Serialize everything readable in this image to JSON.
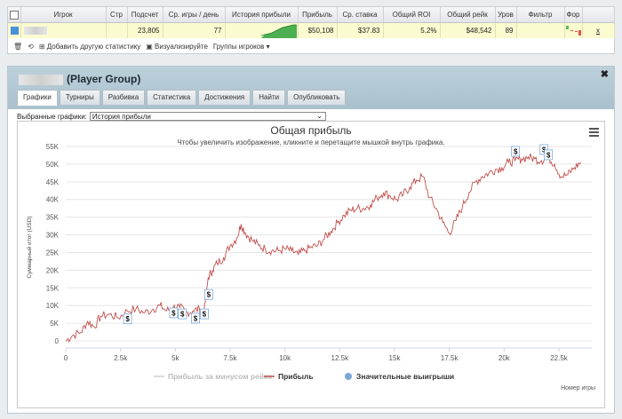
{
  "stats": {
    "columns": [
      "",
      "Игрок",
      "Стр",
      "Подсчет",
      "Ср. игры / день",
      "История прибыли",
      "Прибыль",
      "Ср. ставка",
      "Общий ROI",
      "Общий рейк",
      "Уров",
      "Фильтр",
      "Фор",
      ""
    ],
    "row": {
      "count": "23,805",
      "games_per_day": "77",
      "profit": "$50,108",
      "avg_stake": "$37.83",
      "roi": "5.2%",
      "rake": "$48,542",
      "level": "89",
      "x": "x"
    },
    "toolbar": {
      "add_stat": "Добавить другую статистику",
      "visualize": "Визуализируйте",
      "groups": "Группы игроков ▾"
    }
  },
  "panel": {
    "title": "(Player Group)",
    "tabs": [
      "Графики",
      "Турниры",
      "Разбивка",
      "Статистика",
      "Достижения",
      "Найти",
      "Опубликовать"
    ],
    "selector_label": "Выбранные графики:",
    "selector_value": "История прибыли"
  },
  "chart_data": {
    "type": "line",
    "title": "Общая прибыль",
    "subtitle": "Чтобы увеличить изображение, кликните и перетащите мышкой внутрь графика.",
    "ylabel": "Суммарный итог (USD)",
    "xlabel": "Номер игры",
    "xlim": [
      0,
      24000
    ],
    "ylim": [
      -2000,
      55000
    ],
    "x_ticks": [
      "0",
      "2.5k",
      "5k",
      "7.5k",
      "10k",
      "12.5k",
      "15k",
      "17.5k",
      "20k",
      "22.5k"
    ],
    "x_tick_values": [
      0,
      2500,
      5000,
      7500,
      10000,
      12500,
      15000,
      17500,
      20000,
      22500
    ],
    "y_ticks": [
      "0",
      "5K",
      "10K",
      "15K",
      "20K",
      "25K",
      "30K",
      "35K",
      "40K",
      "45K",
      "50K",
      "55K"
    ],
    "y_tick_values": [
      0,
      5000,
      10000,
      15000,
      20000,
      25000,
      30000,
      35000,
      40000,
      45000,
      50000,
      55000
    ],
    "legend": [
      "Прибыль за минусом рейка",
      "Прибыль",
      "Значительные выигрыши"
    ],
    "legend_colors": [
      "#cfcfcf",
      "#c0504d",
      "#7aa7d6"
    ],
    "series": [
      {
        "name": "Прибыль",
        "x": [
          0,
          300,
          700,
          1000,
          1300,
          1600,
          2000,
          2400,
          2800,
          3200,
          3600,
          4000,
          4300,
          4600,
          4900,
          5200,
          5500,
          5800,
          6100,
          6300,
          6500,
          6700,
          6900,
          7200,
          7500,
          7800,
          8000,
          8200,
          8500,
          8800,
          9100,
          9400,
          9700,
          10000,
          10300,
          10600,
          10900,
          11200,
          11500,
          11800,
          12100,
          12400,
          12700,
          13000,
          13300,
          13600,
          13900,
          14200,
          14500,
          14800,
          15100,
          15400,
          15700,
          16000,
          16300,
          16600,
          16900,
          17200,
          17500,
          17800,
          18100,
          18400,
          18700,
          19000,
          19300,
          19600,
          19900,
          20200,
          20500,
          20800,
          21100,
          21400,
          21700,
          22000,
          22300,
          22600,
          22900,
          23200,
          23500
        ],
        "y": [
          0,
          1500,
          2500,
          5500,
          4000,
          7000,
          7500,
          6500,
          8500,
          9000,
          8000,
          9000,
          10000,
          8500,
          9500,
          9500,
          8000,
          8500,
          9000,
          7500,
          18000,
          20000,
          22000,
          23500,
          27000,
          29000,
          33000,
          30500,
          28500,
          27000,
          26000,
          25500,
          25500,
          26000,
          25500,
          24500,
          25500,
          26500,
          27000,
          29000,
          31000,
          33500,
          35500,
          37000,
          37500,
          37500,
          38500,
          40500,
          42000,
          41000,
          40000,
          41500,
          43500,
          45500,
          46500,
          40500,
          37500,
          33500,
          30500,
          34000,
          38000,
          42000,
          45000,
          46500,
          47500,
          48500,
          49000,
          50500,
          51000,
          51500,
          52000,
          51500,
          51000,
          52000,
          50000,
          46500,
          47000,
          49000,
          50500
        ]
      }
    ],
    "markers": [
      {
        "x": 2800,
        "y": 4600,
        "label": "$"
      },
      {
        "x": 4900,
        "y": 6300,
        "label": "$"
      },
      {
        "x": 5300,
        "y": 6000,
        "label": "$"
      },
      {
        "x": 5900,
        "y": 4800,
        "label": "$"
      },
      {
        "x": 6300,
        "y": 6000,
        "label": "$"
      },
      {
        "x": 6500,
        "y": 11500,
        "label": "$"
      },
      {
        "x": 20500,
        "y": 52000,
        "label": "$"
      },
      {
        "x": 21800,
        "y": 52500,
        "label": "$"
      },
      {
        "x": 22000,
        "y": 51000,
        "label": "$"
      }
    ]
  }
}
